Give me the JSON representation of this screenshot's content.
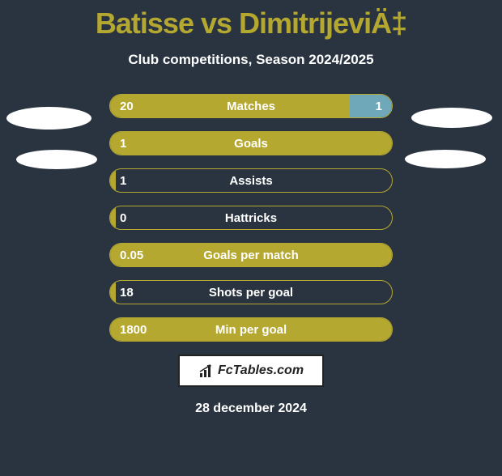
{
  "title": "Batisse vs DimitrijeviÄ‡",
  "subtitle": "Club competitions, Season 2024/2025",
  "date": "28 december 2024",
  "logo_text": "FcTables.com",
  "colors": {
    "background": "#2a3440",
    "accent": "#b5a831",
    "right_fill": "#6fa8b8",
    "text": "#ffffff",
    "ellipse": "#ffffff"
  },
  "stats": [
    {
      "label": "Matches",
      "left_value": "20",
      "right_value": "1",
      "left_fill_pct": 85,
      "right_fill_pct": 15
    },
    {
      "label": "Goals",
      "left_value": "1",
      "right_value": "",
      "left_fill_pct": 100,
      "right_fill_pct": 0
    },
    {
      "label": "Assists",
      "left_value": "1",
      "right_value": "",
      "left_fill_pct": 2,
      "right_fill_pct": 0
    },
    {
      "label": "Hattricks",
      "left_value": "0",
      "right_value": "",
      "left_fill_pct": 2,
      "right_fill_pct": 0
    },
    {
      "label": "Goals per match",
      "left_value": "0.05",
      "right_value": "",
      "left_fill_pct": 100,
      "right_fill_pct": 0
    },
    {
      "label": "Shots per goal",
      "left_value": "18",
      "right_value": "",
      "left_fill_pct": 2,
      "right_fill_pct": 0
    },
    {
      "label": "Min per goal",
      "left_value": "1800",
      "right_value": "",
      "left_fill_pct": 100,
      "right_fill_pct": 0
    }
  ]
}
